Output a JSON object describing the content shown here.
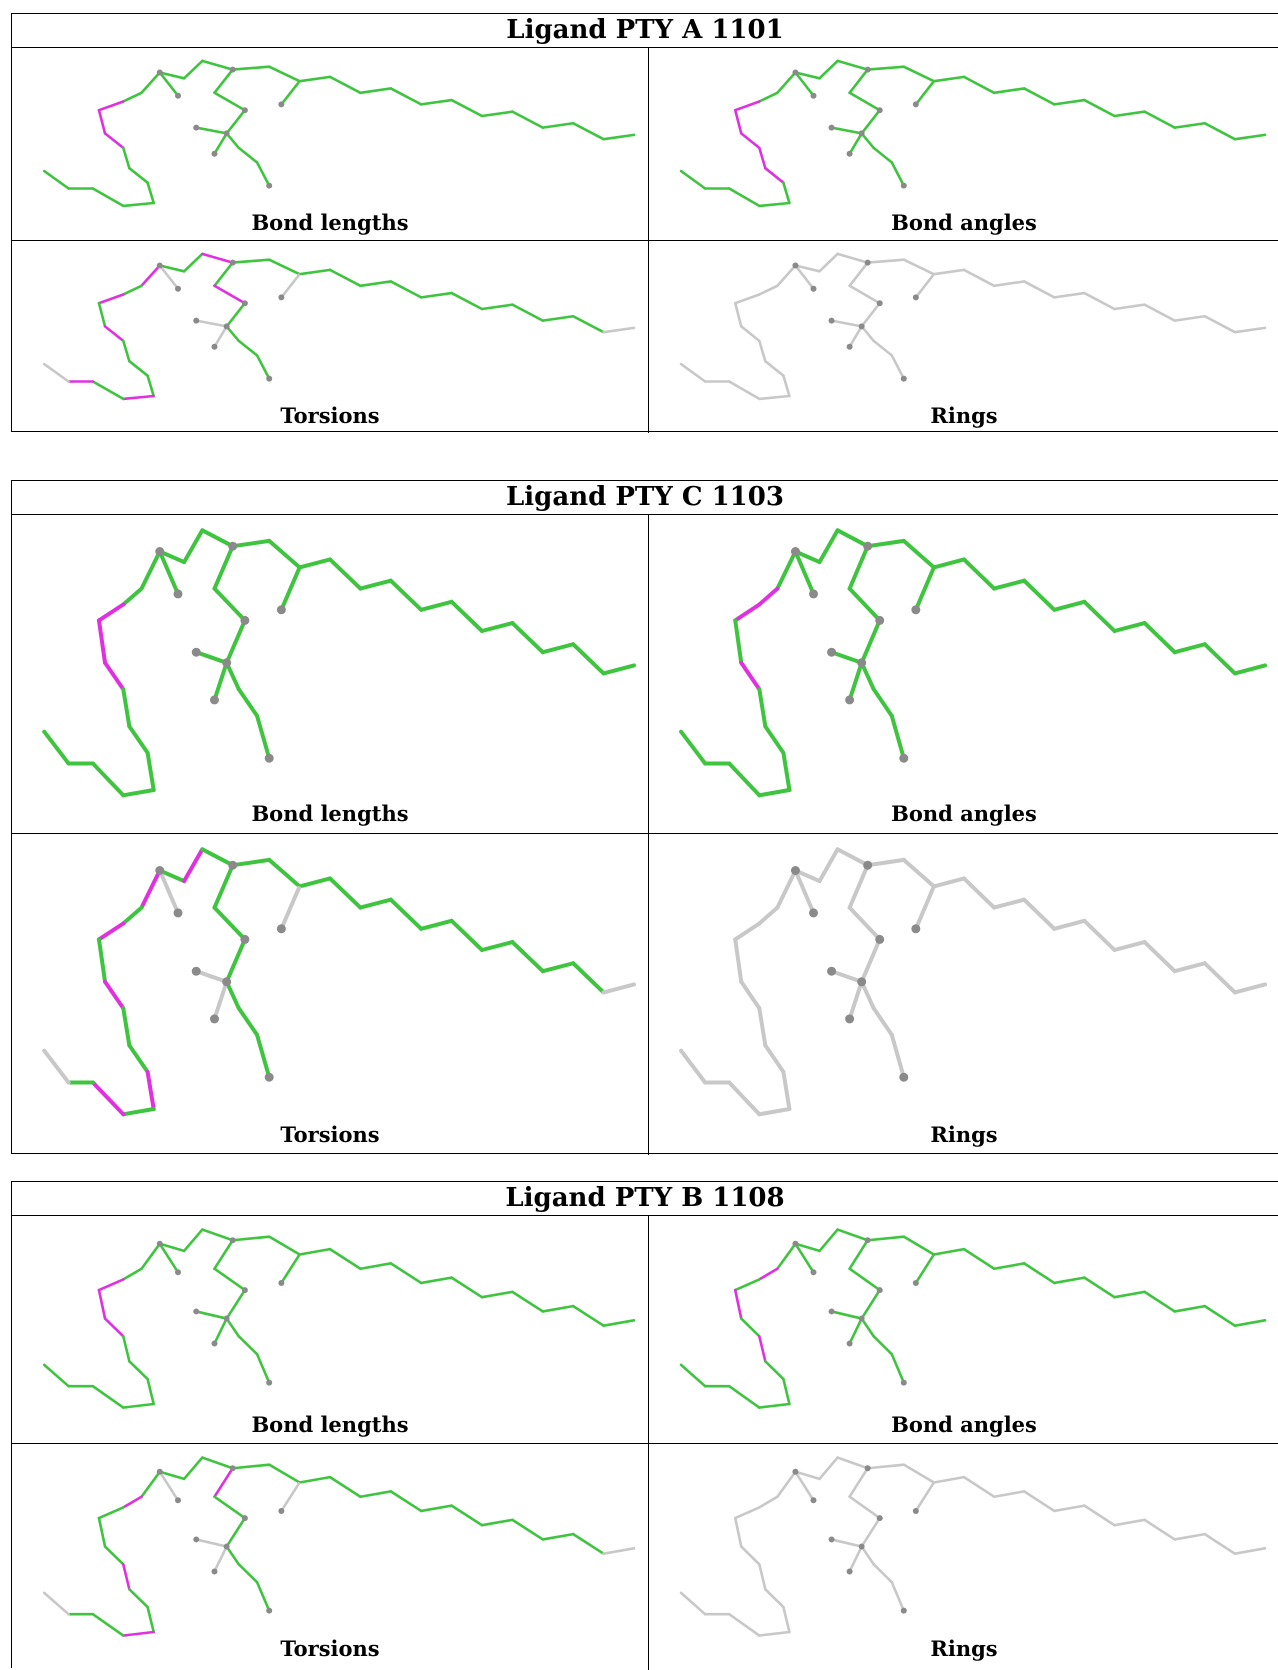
{
  "colors": {
    "ok": "#3ec43e",
    "outlier": "#e030e0",
    "none": "#c8c8c8",
    "atom": "#8a8a8a"
  },
  "ligands": [
    {
      "title": "Ligand PTY A 1101",
      "panels": [
        {
          "caption": "Bond lengths",
          "outliers": [
            3,
            4,
            5
          ]
        },
        {
          "caption": "Bond angles",
          "outliers": [
            3,
            4,
            5,
            6,
            7
          ]
        },
        {
          "caption": "Torsions",
          "outliers": [
            1,
            3,
            5,
            9,
            11,
            14,
            16
          ]
        },
        {
          "caption": "Rings",
          "outliers": []
        }
      ]
    },
    {
      "title": "Ligand PTY C 1103",
      "panels": [
        {
          "caption": "Bond lengths",
          "outliers": [
            3,
            4,
            5
          ]
        },
        {
          "caption": "Bond angles",
          "outliers": [
            2,
            3,
            5
          ]
        },
        {
          "caption": "Torsions",
          "outliers": [
            1,
            3,
            5,
            8,
            10,
            13
          ]
        },
        {
          "caption": "Rings",
          "outliers": []
        }
      ]
    },
    {
      "title": "Ligand PTY B 1108",
      "panels": [
        {
          "caption": "Bond lengths",
          "outliers": [
            3,
            4,
            5
          ]
        },
        {
          "caption": "Bond angles",
          "outliers": [
            2,
            4,
            6
          ]
        },
        {
          "caption": "Torsions",
          "outliers": [
            2,
            6,
            9,
            12,
            15
          ]
        },
        {
          "caption": "Rings",
          "outliers": []
        }
      ]
    }
  ]
}
